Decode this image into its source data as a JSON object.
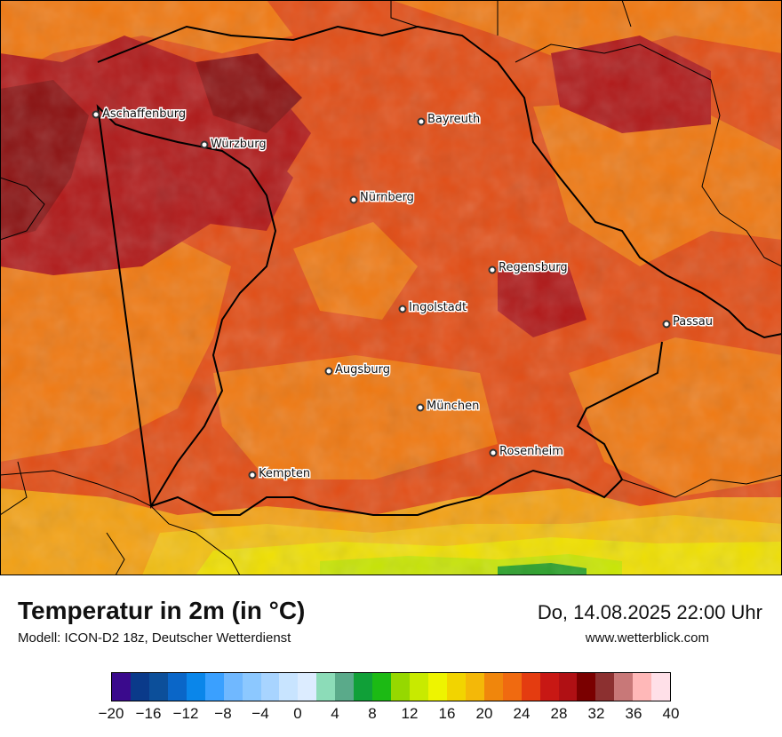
{
  "map": {
    "title": "Temperatur in 2m (in °C)",
    "subtitle": "Modell: ICON-D2 18z, Deutscher Wetterdienst",
    "datetime": "Do, 14.08.2025 22:00 Uhr",
    "website": "www.wetterblick.com",
    "colors": {
      "very_hot_32": "#8b1010",
      "hot_30": "#b01818",
      "warm_28": "#c8281c",
      "warm_26": "#e24c14",
      "mild_24": "#f07810",
      "mild_22": "#f4a010",
      "cool_20": "#f4c010",
      "cool_18": "#f0e000",
      "cool_14": "#c8e600",
      "cold_12": "#70c820",
      "cold_8": "#20a020",
      "border": "#000000"
    },
    "cities": [
      {
        "name": "Aschaffenburg"
      },
      {
        "name": "Würzburg"
      },
      {
        "name": "Bayreuth"
      },
      {
        "name": "Nürnberg"
      },
      {
        "name": "Regensburg"
      },
      {
        "name": "Ingolstadt"
      },
      {
        "name": "Passau"
      },
      {
        "name": "Augsburg"
      },
      {
        "name": "München"
      },
      {
        "name": "Rosenheim"
      },
      {
        "name": "Kempten"
      }
    ]
  },
  "legend": {
    "unit": "°C",
    "colors": [
      "#3a0a8c",
      "#0a3a8a",
      "#0c4f9a",
      "#0a66c8",
      "#0a86ea",
      "#3aa0ff",
      "#70b8ff",
      "#8cc8ff",
      "#a8d4ff",
      "#c8e4ff",
      "#dcecff",
      "#8cdcb8",
      "#5aaa8a",
      "#10a038",
      "#1cba14",
      "#96d800",
      "#c8ea00",
      "#eef400",
      "#f2d400",
      "#f4b808",
      "#f0860c",
      "#f06a10",
      "#e43c10",
      "#c81814",
      "#b01014",
      "#7a0000",
      "#8c3030",
      "#c87878",
      "#ffb8b8",
      "#ffe0e8"
    ],
    "ticks": [
      "−20",
      "−16",
      "−12",
      "−8",
      "−4",
      "0",
      "4",
      "8",
      "12",
      "16",
      "20",
      "24",
      "28",
      "32",
      "36",
      "40"
    ]
  }
}
